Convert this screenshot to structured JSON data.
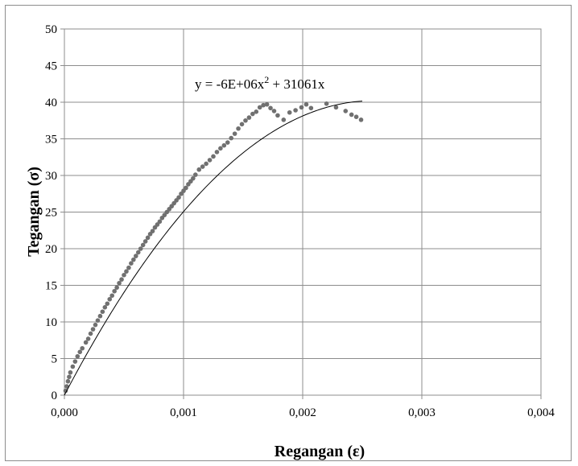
{
  "chart_data": {
    "type": "scatter",
    "title": "",
    "xlabel": "Regangan (ε)",
    "ylabel": "Tegangan (σ)",
    "xlim": [
      0,
      0.004
    ],
    "ylim": [
      0,
      50
    ],
    "x_ticks": [
      "0,000",
      "0,001",
      "0,002",
      "0,003",
      "0,004"
    ],
    "y_ticks": [
      "0",
      "5",
      "10",
      "15",
      "20",
      "25",
      "30",
      "35",
      "40",
      "45",
      "50"
    ],
    "grid": true,
    "legend": "none",
    "point_color": "#707070",
    "line_color": "#000000",
    "annotation": {
      "prefix": "y = -6E+06x",
      "sup": "2",
      "suffix": " + 31061x"
    },
    "trendline": {
      "a": -6000000,
      "b": 31061,
      "x_range": [
        0,
        0.0025
      ]
    },
    "series": [
      {
        "x": [
          1e-05,
          2e-05,
          3e-05,
          4e-05,
          5e-05,
          7e-05,
          9e-05,
          0.00011,
          0.00013,
          0.00015,
          0.00018,
          0.0002,
          0.00022,
          0.00024,
          0.00026,
          0.00028,
          0.0003,
          0.00032,
          0.00034,
          0.00036,
          0.00038,
          0.0004,
          0.00042,
          0.00044,
          0.00046,
          0.00048,
          0.0005,
          0.00052,
          0.00054,
          0.00056,
          0.00058,
          0.0006,
          0.00062,
          0.00064,
          0.00066,
          0.00068,
          0.0007,
          0.00072,
          0.00074,
          0.00076,
          0.00078,
          0.0008,
          0.00082,
          0.00084,
          0.00086,
          0.00088,
          0.0009,
          0.00092,
          0.00094,
          0.00096,
          0.00098,
          0.001,
          0.00102,
          0.00104,
          0.00106,
          0.00108,
          0.0011,
          0.00113,
          0.00116,
          0.00119,
          0.00122,
          0.00125,
          0.00128,
          0.00131,
          0.00134,
          0.00137,
          0.0014,
          0.00143,
          0.00146,
          0.00149,
          0.00152,
          0.00155,
          0.00158,
          0.00161,
          0.00164,
          0.00167,
          0.0017,
          0.00173,
          0.00176,
          0.00179,
          0.00184,
          0.00189,
          0.00194,
          0.00199,
          0.00203,
          0.00207,
          0.0022,
          0.00228,
          0.00236,
          0.00241,
          0.00245,
          0.00249
        ],
        "y": [
          0.6,
          1.2,
          1.9,
          2.5,
          3.1,
          3.9,
          4.6,
          5.3,
          5.9,
          6.4,
          7.2,
          7.7,
          8.4,
          9.0,
          9.6,
          10.2,
          10.8,
          11.4,
          12.0,
          12.5,
          13.1,
          13.6,
          14.2,
          14.7,
          15.3,
          15.8,
          16.4,
          16.9,
          17.4,
          18.0,
          18.5,
          19.0,
          19.5,
          20.0,
          20.5,
          21.0,
          21.5,
          22.0,
          22.4,
          22.9,
          23.3,
          23.7,
          24.2,
          24.6,
          25.0,
          25.4,
          25.8,
          26.2,
          26.6,
          27.0,
          27.5,
          27.9,
          28.3,
          28.8,
          29.2,
          29.6,
          30.1,
          30.8,
          31.2,
          31.6,
          32.1,
          32.6,
          33.2,
          33.7,
          34.1,
          34.5,
          35.1,
          35.7,
          36.4,
          37.0,
          37.5,
          37.9,
          38.4,
          38.7,
          39.3,
          39.6,
          39.7,
          39.2,
          38.8,
          38.2,
          37.6,
          38.6,
          38.9,
          39.3,
          39.7,
          39.2,
          39.8,
          39.3,
          38.8,
          38.3,
          38.0,
          37.6
        ]
      }
    ]
  }
}
